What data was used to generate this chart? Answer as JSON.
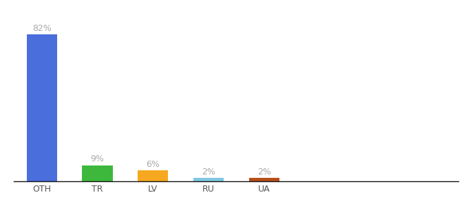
{
  "categories": [
    "OTH",
    "TR",
    "LV",
    "RU",
    "UA"
  ],
  "values": [
    82,
    9,
    6,
    2,
    2
  ],
  "bar_colors": [
    "#4a6fdc",
    "#3db83d",
    "#f5a820",
    "#7ec8e3",
    "#b84e1a"
  ],
  "labels": [
    "82%",
    "9%",
    "6%",
    "2%",
    "2%"
  ],
  "ylim": [
    0,
    92
  ],
  "background_color": "#ffffff",
  "label_color": "#aaaaaa",
  "label_fontsize": 9,
  "tick_fontsize": 9,
  "tick_color": "#555555",
  "bar_width": 0.55,
  "figsize": [
    6.8,
    3.0
  ],
  "dpi": 100
}
